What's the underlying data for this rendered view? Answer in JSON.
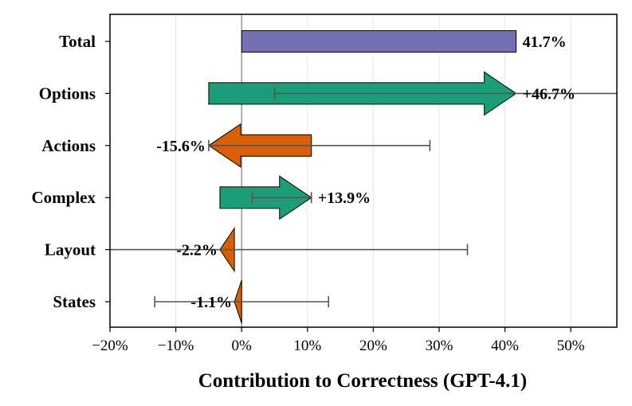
{
  "chart_data": {
    "type": "waterfall-bar",
    "xlabel": "Contribution to Correctness (GPT-4.1)",
    "xlim": [
      -20,
      57
    ],
    "x_ticks": [
      -20,
      -10,
      0,
      10,
      20,
      30,
      40,
      50
    ],
    "x_tick_labels": [
      "−20%",
      "−10%",
      "0%",
      "10%",
      "20%",
      "30%",
      "40%",
      "50%"
    ],
    "colors": {
      "total": "#7570b3",
      "positive": "#1b9e77",
      "negative": "#d95f02",
      "errorbar": "#555555",
      "zero_line": "#808080",
      "grid": "#e6e6e6"
    },
    "rows": [
      {
        "name": "Total",
        "kind": "total",
        "start": 0,
        "end": 41.7,
        "label": "41.7%",
        "err_low": null,
        "err_high": null
      },
      {
        "name": "Options",
        "kind": "positive",
        "start": -5.0,
        "end": 41.7,
        "label": "+46.7%",
        "err_low": 5.0,
        "err_high": 57.0
      },
      {
        "name": "Actions",
        "kind": "negative",
        "start": 10.6,
        "end": -5.0,
        "label": "-15.6%",
        "err_low": -5.0,
        "err_high": 28.6
      },
      {
        "name": "Complex",
        "kind": "positive",
        "start": -3.3,
        "end": 10.6,
        "label": "+13.9%",
        "err_low": 1.6,
        "err_high": 10.6
      },
      {
        "name": "Layout",
        "kind": "negative",
        "start": -1.1,
        "end": -3.3,
        "label": "-2.2%",
        "err_low": -20.0,
        "err_high": 34.3
      },
      {
        "name": "States",
        "kind": "negative",
        "start": 0,
        "end": -1.1,
        "label": "-1.1%",
        "err_low": -13.2,
        "err_high": 13.2
      }
    ]
  }
}
